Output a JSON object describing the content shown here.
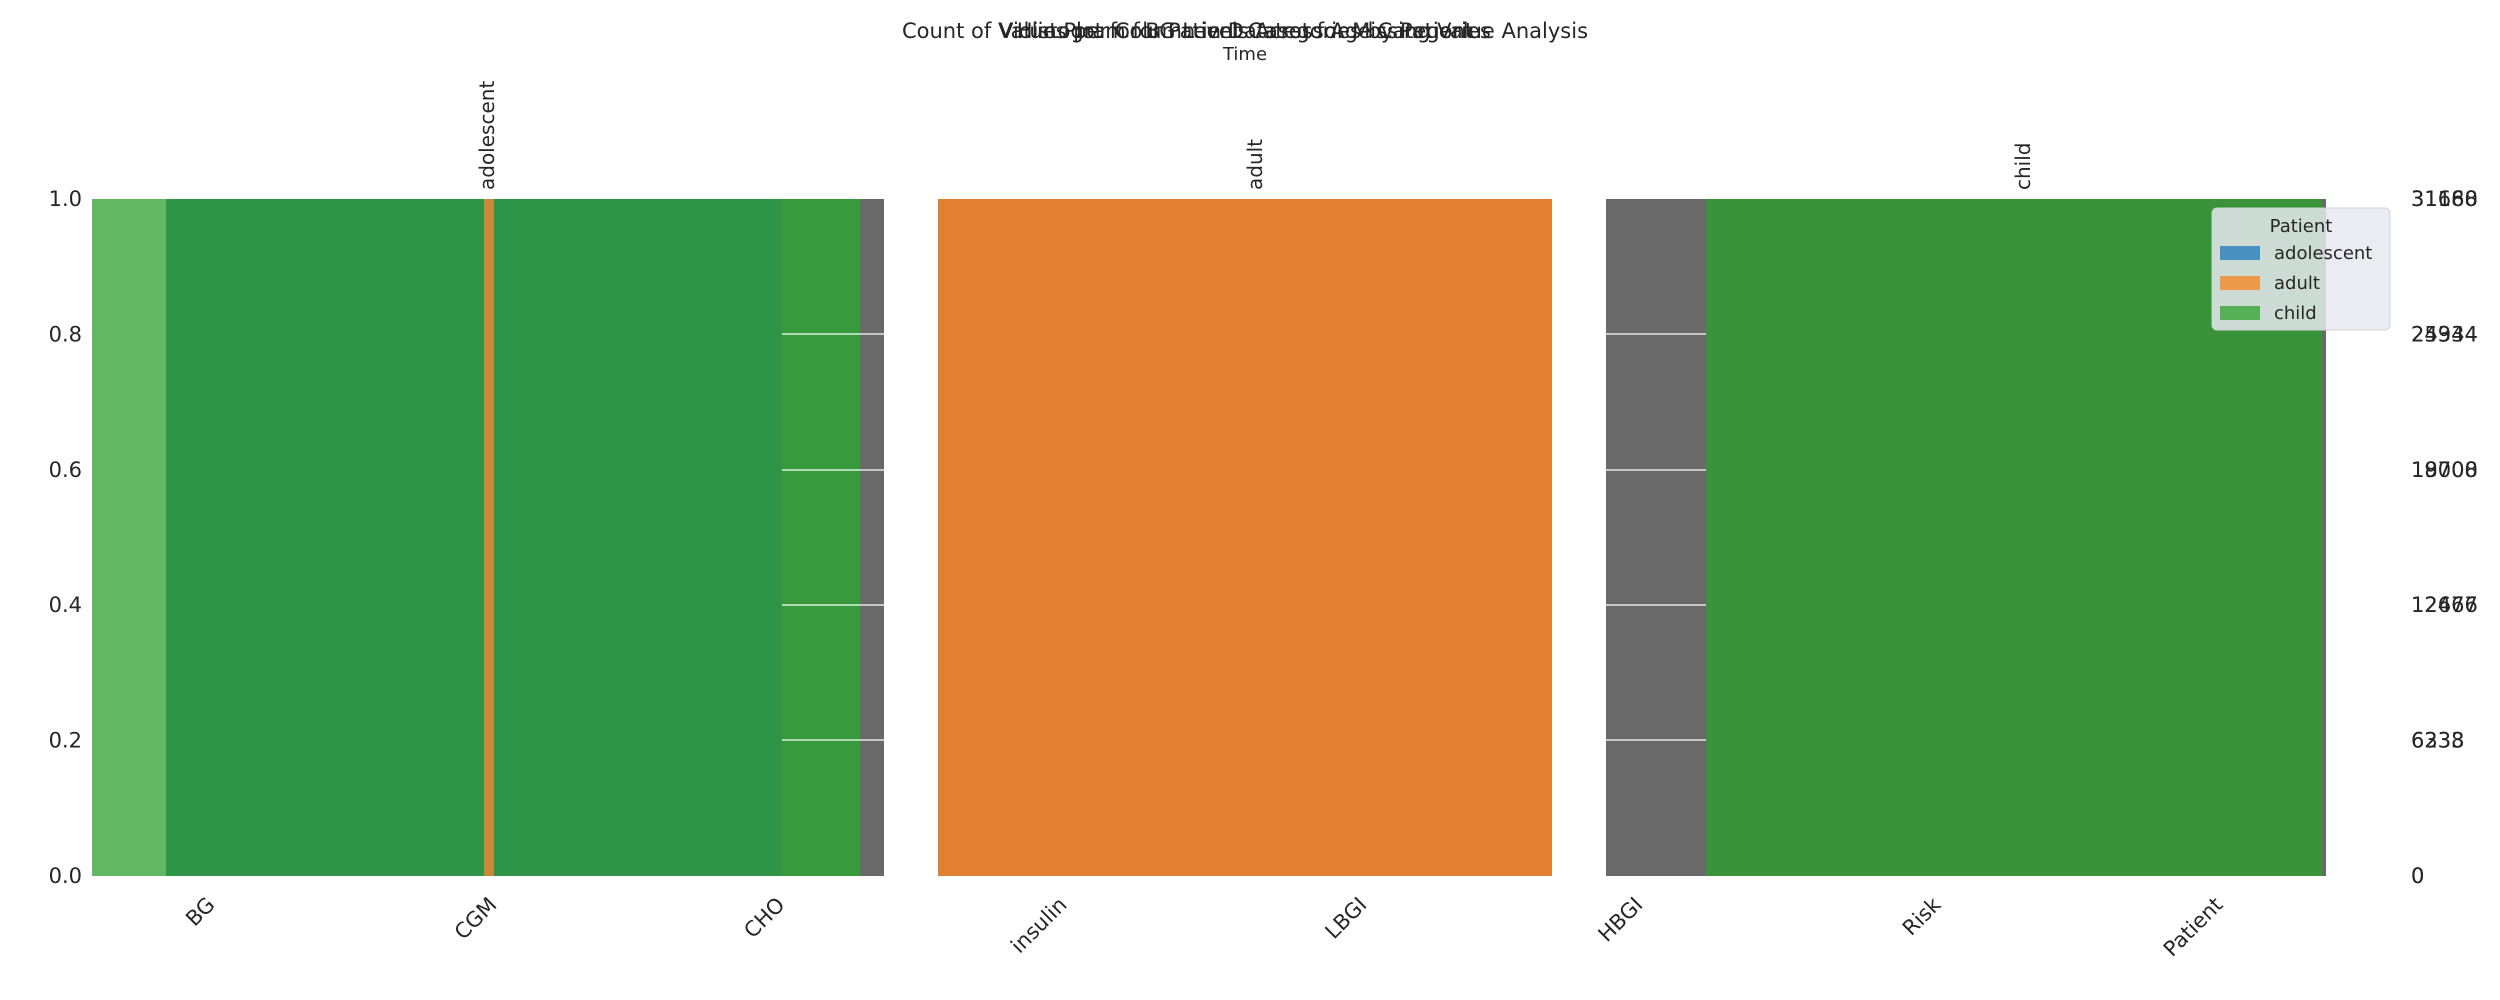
{
  "chart_data": {
    "type": "bar",
    "title_layers": [
      "Count of Values per Column in Dataset for Missing Value Analysis",
      "Violin Plot for BG Levels Across Age Categories",
      "Histogram for Patient Categories by Patient"
    ],
    "xlabel_top": "Time",
    "facet_labels": [
      "adolescent",
      "adult",
      "child"
    ],
    "categories": [
      "BG",
      "CGM",
      "CHO",
      "insulin",
      "LBGI",
      "HBGI",
      "Risk",
      "Patient"
    ],
    "left_axis": {
      "ticks": [
        "0.0",
        "0.2",
        "0.4",
        "0.6",
        "0.8",
        "1.0"
      ],
      "ylim": [
        0,
        1
      ]
    },
    "right_axis": {
      "ticks_a": [
        "0",
        "6233",
        "12467",
        "18700",
        "24934",
        "31168"
      ],
      "ticks_b": [
        "0",
        "6338",
        "12676",
        "19008",
        "25344",
        "31680"
      ]
    },
    "legend": {
      "title": "Patient",
      "items": [
        {
          "label": "adolescent",
          "color": "#3a87be"
        },
        {
          "label": "adult",
          "color": "#f0913a"
        },
        {
          "label": "child",
          "color": "#4aab4a"
        }
      ]
    },
    "count_bars": {
      "categories": [
        "BG",
        "CGM",
        "CHO",
        "insulin",
        "LBGI",
        "HBGI",
        "Risk",
        "Patient"
      ],
      "values": [
        31680,
        31680,
        31680,
        31680,
        31680,
        31680,
        31680,
        31680
      ],
      "color": "#696969"
    },
    "colors": {
      "adolescent": "#1f77b4",
      "adult": "#e08030",
      "child": "#2ca02c",
      "count": "#696969"
    }
  }
}
